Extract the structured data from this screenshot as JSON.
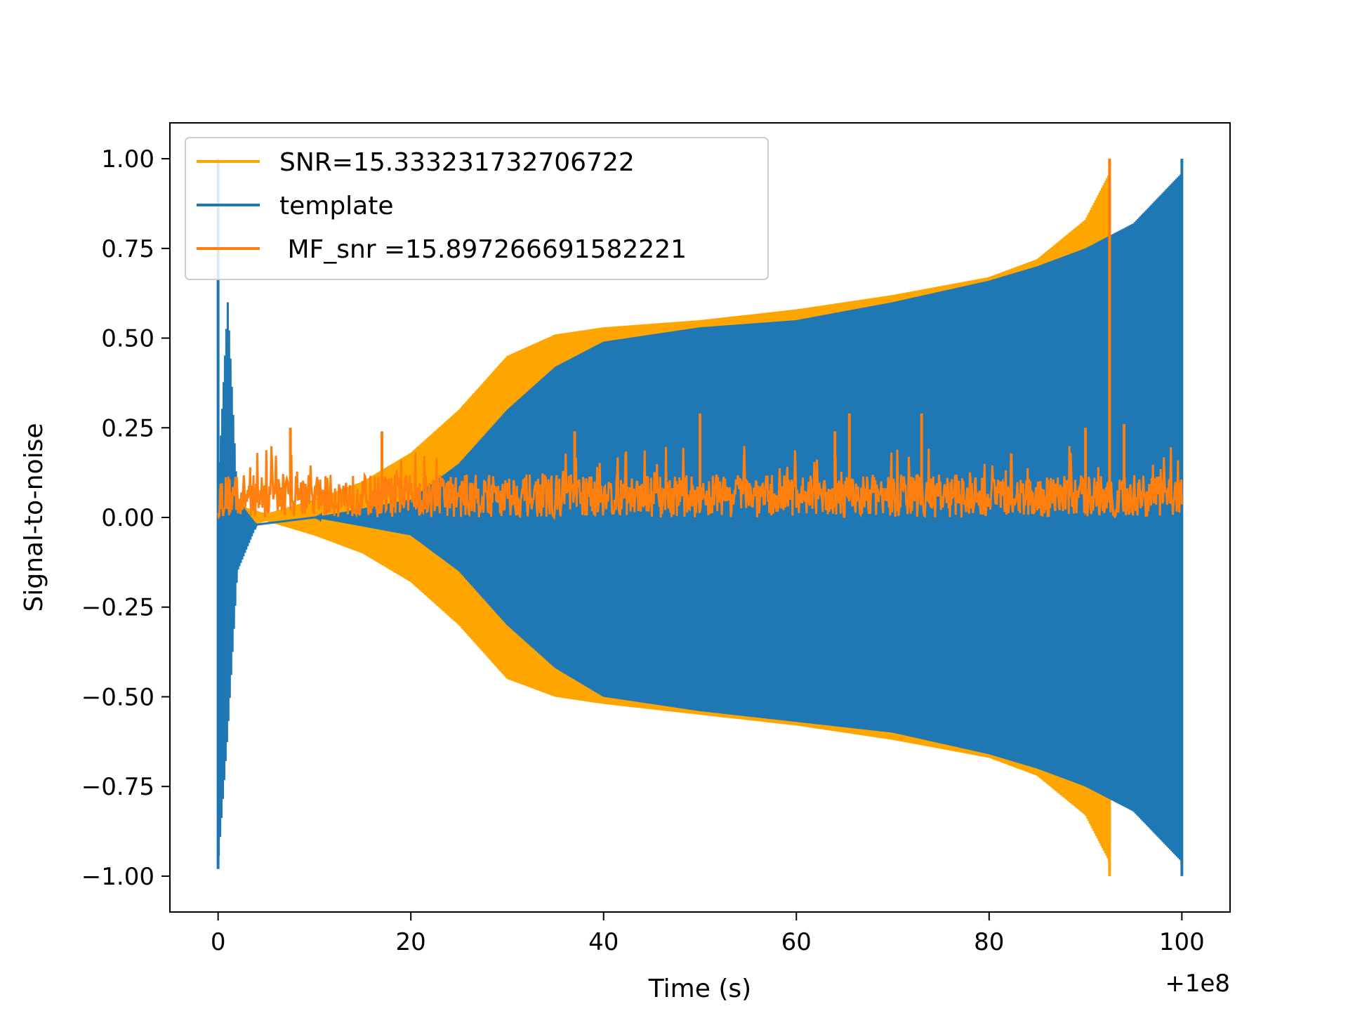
{
  "chart_data": {
    "type": "line",
    "title": "",
    "xlabel": "Time (s)",
    "ylabel": "Signal-to-noise",
    "x_offset_label": "+1e8",
    "xlim": [
      -5,
      105
    ],
    "ylim": [
      -1.1,
      1.1
    ],
    "x_ticks": [
      0,
      20,
      40,
      60,
      80,
      100
    ],
    "y_ticks": [
      1.0,
      0.75,
      0.5,
      0.25,
      0.0,
      -0.25,
      -0.5,
      -0.75,
      -1.0
    ],
    "x_tick_labels": [
      "0",
      "20",
      "40",
      "60",
      "80",
      "100"
    ],
    "y_tick_labels": [
      "1.00",
      "0.75",
      "0.50",
      "0.25",
      "0.00",
      "−0.25",
      "−0.50",
      "−0.75",
      "−1.00"
    ],
    "legend_position": "top-left",
    "grid": false,
    "series": [
      {
        "name": "SNR=15.333231732706722",
        "color": "#FFA500",
        "kind": "oscillating-band",
        "upper_envelope": [
          [
            0,
            0.05
          ],
          [
            5,
            0.01
          ],
          [
            10,
            0.05
          ],
          [
            15,
            0.1
          ],
          [
            20,
            0.18
          ],
          [
            25,
            0.3
          ],
          [
            30,
            0.45
          ],
          [
            35,
            0.51
          ],
          [
            40,
            0.53
          ],
          [
            50,
            0.55
          ],
          [
            60,
            0.58
          ],
          [
            70,
            0.62
          ],
          [
            80,
            0.67
          ],
          [
            85,
            0.72
          ],
          [
            90,
            0.83
          ],
          [
            92.5,
            0.96
          ]
        ],
        "lower_envelope": [
          [
            0,
            -0.05
          ],
          [
            5,
            -0.01
          ],
          [
            10,
            -0.05
          ],
          [
            15,
            -0.1
          ],
          [
            20,
            -0.18
          ],
          [
            25,
            -0.3
          ],
          [
            30,
            -0.45
          ],
          [
            35,
            -0.5
          ],
          [
            40,
            -0.52
          ],
          [
            50,
            -0.55
          ],
          [
            60,
            -0.58
          ],
          [
            70,
            -0.62
          ],
          [
            80,
            -0.67
          ],
          [
            85,
            -0.72
          ],
          [
            90,
            -0.83
          ],
          [
            92.5,
            -0.96
          ]
        ],
        "spikes": [
          [
            92.5,
            1.0
          ],
          [
            92.5,
            -1.0
          ]
        ]
      },
      {
        "name": "template",
        "color": "#1F77B4",
        "kind": "oscillating-band",
        "upper_envelope": [
          [
            0,
            0.08
          ],
          [
            1,
            0.6
          ],
          [
            2,
            0.05
          ],
          [
            4,
            -0.02
          ],
          [
            10,
            0.0
          ],
          [
            20,
            0.05
          ],
          [
            25,
            0.15
          ],
          [
            30,
            0.3
          ],
          [
            35,
            0.42
          ],
          [
            40,
            0.49
          ],
          [
            50,
            0.53
          ],
          [
            60,
            0.55
          ],
          [
            70,
            0.6
          ],
          [
            80,
            0.66
          ],
          [
            85,
            0.7
          ],
          [
            90,
            0.75
          ],
          [
            95,
            0.82
          ],
          [
            100,
            0.96
          ]
        ],
        "lower_envelope": [
          [
            0,
            -0.97
          ],
          [
            1,
            -0.6
          ],
          [
            2,
            -0.15
          ],
          [
            4,
            -0.02
          ],
          [
            10,
            0.0
          ],
          [
            20,
            -0.05
          ],
          [
            25,
            -0.15
          ],
          [
            30,
            -0.3
          ],
          [
            35,
            -0.42
          ],
          [
            40,
            -0.5
          ],
          [
            50,
            -0.54
          ],
          [
            60,
            -0.57
          ],
          [
            70,
            -0.6
          ],
          [
            80,
            -0.66
          ],
          [
            85,
            -0.7
          ],
          [
            90,
            -0.75
          ],
          [
            95,
            -0.82
          ],
          [
            100,
            -0.96
          ]
        ],
        "spikes": [
          [
            0,
            1.0
          ],
          [
            0,
            -0.98
          ],
          [
            100,
            1.0
          ],
          [
            100,
            -1.0
          ]
        ]
      },
      {
        "name": " MF_snr =15.897266691582221",
        "color": "#FF7F0E",
        "kind": "noise",
        "baseline": 0.06,
        "range": [
          0.0,
          0.2
        ],
        "spikes": [
          [
            7.5,
            0.25
          ],
          [
            17,
            0.24
          ],
          [
            37,
            0.24
          ],
          [
            50,
            0.29
          ],
          [
            64,
            0.24
          ],
          [
            65.5,
            0.29
          ],
          [
            73,
            0.29
          ],
          [
            90,
            0.25
          ],
          [
            92.5,
            1.0
          ],
          [
            94,
            0.26
          ]
        ]
      }
    ]
  }
}
